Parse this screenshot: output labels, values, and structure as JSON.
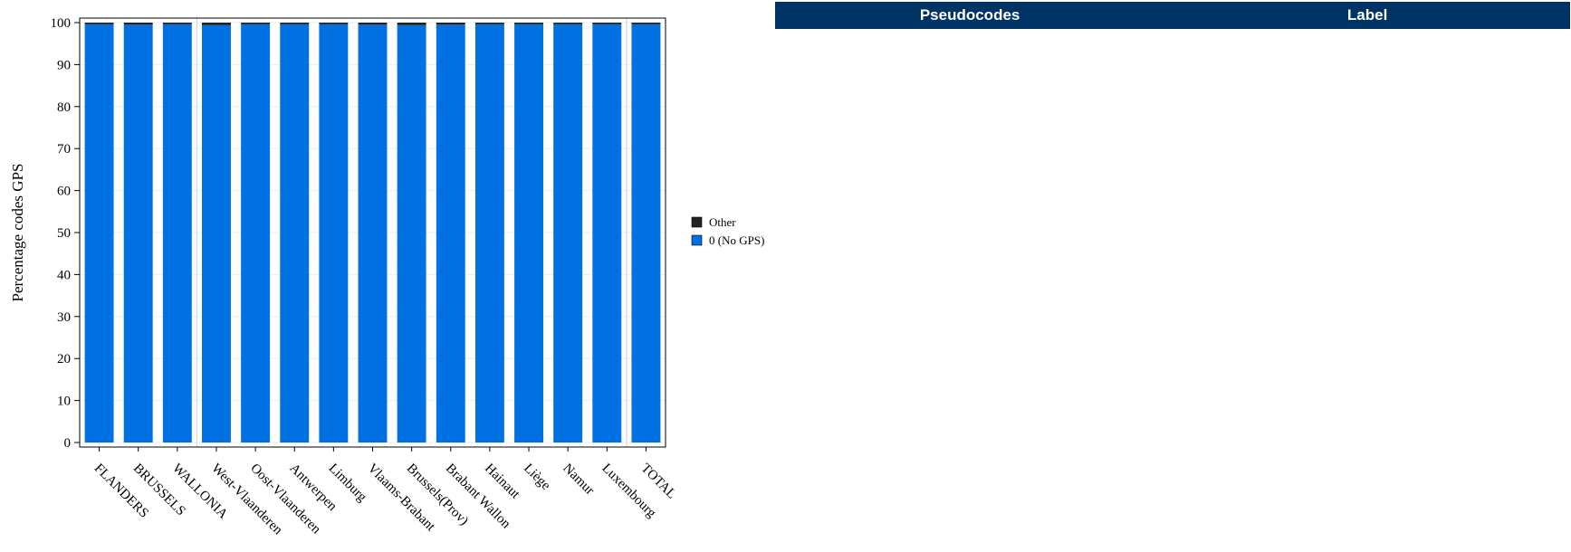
{
  "chart_data": {
    "type": "bar",
    "stacked": true,
    "ylabel": "Percentage codes GPS",
    "ylim": [
      0,
      100
    ],
    "yticks": [
      0,
      10,
      20,
      30,
      40,
      50,
      60,
      70,
      80,
      90,
      100
    ],
    "grid": true,
    "legend_position": "right",
    "categories": [
      "FLANDERS",
      "BRUSSELS",
      "WALLONIA",
      "West-Vlaanderen",
      "Oost-Vlaanderen",
      "Antwerpen",
      "Limburg",
      "Vlaams-Brabant",
      "Brussels(Prov)",
      "Brabant Wallon",
      "Hainaut",
      "Liège",
      "Namur",
      "Luxembourg",
      "TOTAL"
    ],
    "series": [
      {
        "name": "0 (No GPS)",
        "color": "#0071e3",
        "values": [
          99.6,
          99.5,
          99.6,
          99.4,
          99.6,
          99.6,
          99.6,
          99.5,
          99.4,
          99.5,
          99.6,
          99.6,
          99.6,
          99.6,
          99.6
        ]
      },
      {
        "name": "Other",
        "color": "#222222",
        "values": [
          0.4,
          0.5,
          0.4,
          0.6,
          0.4,
          0.4,
          0.4,
          0.5,
          0.6,
          0.5,
          0.4,
          0.4,
          0.4,
          0.4,
          0.4
        ]
      }
    ],
    "group_separators_after": [
      "WALLONIA",
      "Luxembourg"
    ]
  },
  "table": {
    "headers": [
      "Pseudocodes",
      "Label"
    ]
  }
}
